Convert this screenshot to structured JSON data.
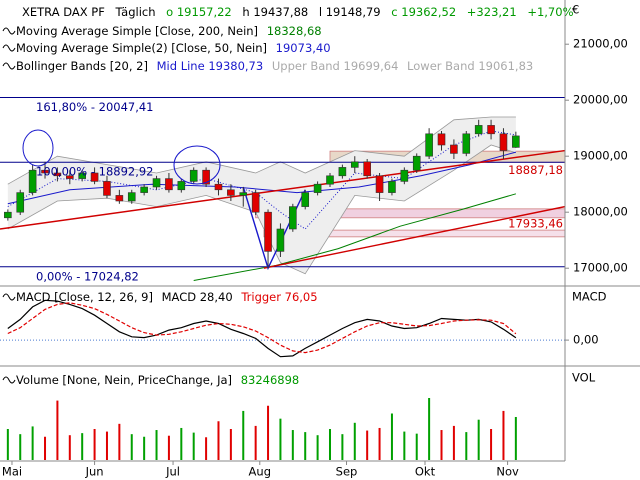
{
  "chart_data": [
    {
      "type": "candlestick",
      "title": "XETRA DAX PF",
      "subtitle": "Täglich",
      "quote": [
        "o 19157,22",
        "h 19437,88",
        "l 19148,79",
        "c 19362,52",
        "+323,21",
        "+1,70%"
      ],
      "currency": "€",
      "x": [
        0,
        3,
        6,
        9,
        12,
        15,
        18,
        21,
        24,
        27,
        30,
        33,
        36,
        39,
        42,
        45,
        48,
        51,
        54,
        57,
        60,
        63,
        66,
        69,
        72,
        75,
        78,
        81,
        84,
        87,
        90,
        93,
        96,
        99,
        102,
        105,
        108,
        111,
        114,
        117,
        120,
        123
      ],
      "open": [
        17900,
        18000,
        18350,
        18750,
        18700,
        18650,
        18600,
        18700,
        18550,
        18300,
        18200,
        18350,
        18450,
        18600,
        18400,
        18550,
        18750,
        18500,
        18400,
        18300,
        18350,
        18000,
        17300,
        17700,
        18100,
        18350,
        18500,
        18650,
        18800,
        18900,
        18650,
        18350,
        18550,
        18750,
        19000,
        19400,
        19200,
        19050,
        19400,
        19550,
        19400,
        19157.22
      ],
      "high": [
        18050,
        18400,
        18850,
        18900,
        18800,
        18750,
        18750,
        18800,
        18650,
        18400,
        18400,
        18500,
        18650,
        18700,
        18600,
        18800,
        18800,
        18600,
        18500,
        18450,
        18400,
        18050,
        17800,
        18150,
        18400,
        18550,
        18700,
        18850,
        19000,
        18950,
        18700,
        18600,
        18800,
        19050,
        19500,
        19450,
        19300,
        19450,
        19650,
        19650,
        19500,
        19437.88
      ],
      "low": [
        17850,
        17950,
        18300,
        18600,
        18550,
        18500,
        18550,
        18500,
        18250,
        18150,
        18150,
        18300,
        18400,
        18350,
        18350,
        18500,
        18450,
        18300,
        18200,
        18100,
        17950,
        17000,
        17200,
        17650,
        18050,
        18300,
        18450,
        18600,
        18700,
        18600,
        18200,
        18300,
        18500,
        18700,
        18950,
        19100,
        18950,
        19000,
        19350,
        19300,
        18950,
        19148.79
      ],
      "close": [
        18000,
        18350,
        18750,
        18700,
        18650,
        18600,
        18700,
        18550,
        18300,
        18200,
        18350,
        18450,
        18600,
        18400,
        18550,
        18750,
        18500,
        18400,
        18300,
        18350,
        18000,
        17300,
        17700,
        18100,
        18350,
        18500,
        18650,
        18800,
        18900,
        18650,
        18350,
        18550,
        18750,
        19000,
        19400,
        19200,
        19050,
        19400,
        19550,
        19400,
        19100,
        19362.52
      ],
      "up_color": "#00a000",
      "down_color": "#e00000",
      "xlim": [
        -1.9,
        134.9
      ],
      "ylim": [
        16700,
        21700
      ],
      "yticks": [
        {
          "value": 17000,
          "label": "17000,00"
        },
        {
          "value": 18000,
          "label": "18000,00"
        },
        {
          "value": 19000,
          "label": "19000,00"
        },
        {
          "value": 20000,
          "label": "20000,00"
        },
        {
          "value": 21000,
          "label": "21000,00"
        }
      ],
      "series": [
        {
          "name": "Moving Average Simple [Close, 200, Nein]",
          "color": "#008000",
          "x": [
            45,
            65,
            80,
            95,
            110,
            123
          ],
          "values": [
            16780,
            17050,
            17350,
            17750,
            18050,
            18328.68
          ],
          "value_label": "18328,68"
        },
        {
          "name": "Moving Average Simple(2) [Close, 50, Nein]",
          "color": "#1a1acc",
          "x": [
            0,
            15,
            35,
            55,
            70,
            85,
            100,
            112,
            123
          ],
          "values": [
            18150,
            18400,
            18500,
            18450,
            18350,
            18450,
            18650,
            18850,
            19073.4
          ],
          "value_label": "19073,40"
        }
      ],
      "bollinger": {
        "name": "Bollinger Bands [20, 2]",
        "x": [
          0,
          12,
          24,
          36,
          48,
          60,
          66,
          72,
          84,
          96,
          108,
          117,
          123
        ],
        "mid": [
          18100,
          18600,
          18550,
          18400,
          18600,
          18350,
          18000,
          17700,
          18700,
          18600,
          19200,
          19450,
          19380.73
        ],
        "upper": [
          18500,
          19000,
          18850,
          18700,
          18900,
          18700,
          18900,
          18700,
          19100,
          19000,
          19650,
          19700,
          19699.64
        ],
        "lower": [
          17700,
          18200,
          18250,
          18100,
          18300,
          18000,
          17100,
          16900,
          18300,
          18200,
          18750,
          19200,
          19061.83
        ],
        "mid_label": "Mid Line 19380,73",
        "upper_label": "Upper Band 19699,64",
        "lower_label": "Lower Band 19061,83",
        "mid_color": "#1a1acc",
        "band_color": "#999999"
      },
      "levels": [
        {
          "value": 20047.41,
          "label": "161,80% - 20047,41",
          "color": "#00008b"
        },
        {
          "value": 18892.92,
          "label": "100,00% - 18892,92",
          "color": "#00008b"
        },
        {
          "value": 17024.82,
          "label": "0,00% - 17024,82",
          "color": "#00008b"
        }
      ],
      "zones": [
        {
          "low": 18890,
          "high": 19090,
          "from": 78,
          "color": "#e8d8c8"
        },
        {
          "low": 17900,
          "high": 18060,
          "from": 60,
          "color": "#f0d0e0"
        },
        {
          "low": 17560,
          "high": 17680,
          "from": 62,
          "color": "#f5e0ea"
        }
      ],
      "trendlines": [
        {
          "color": "#d00000",
          "points": [
            [
              -1.9,
              17700
            ],
            [
              134.9,
              19100
            ]
          ]
        },
        {
          "color": "#d00000",
          "points": [
            [
              62,
              17000
            ],
            [
              134.9,
              18100
            ]
          ]
        },
        {
          "color": "#1a1acc",
          "points": [
            [
              57,
              18450
            ],
            [
              63,
              17000
            ],
            [
              72,
              18400
            ]
          ]
        }
      ],
      "price_marks": [
        {
          "value": 18887.18,
          "label": "18887,18",
          "color": "#d00000"
        },
        {
          "value": 17933.46,
          "label": "17933,46",
          "color": "#d00000"
        }
      ]
    },
    {
      "type": "line",
      "title": "MACD [Close, 12, 26, 9]",
      "axis_label": "MACD",
      "x": [
        0,
        3,
        6,
        9,
        12,
        15,
        18,
        21,
        24,
        27,
        30,
        33,
        36,
        39,
        42,
        45,
        48,
        51,
        54,
        57,
        60,
        63,
        66,
        69,
        72,
        75,
        78,
        81,
        84,
        87,
        90,
        93,
        96,
        99,
        102,
        105,
        108,
        111,
        114,
        117,
        120,
        123
      ],
      "xlim": [
        -1.9,
        134.9
      ],
      "ylim": [
        -300,
        640
      ],
      "yticks": [
        {
          "value": 0,
          "label": "0,00"
        }
      ],
      "series": [
        {
          "color": "#000000",
          "value_label": "MACD 28,40",
          "values": [
            140,
            250,
            400,
            480,
            470,
            430,
            380,
            300,
            200,
            100,
            40,
            30,
            60,
            120,
            150,
            200,
            230,
            200,
            130,
            80,
            20,
            -100,
            -200,
            -190,
            -100,
            -20,
            60,
            140,
            210,
            250,
            230,
            170,
            140,
            150,
            200,
            260,
            250,
            240,
            250,
            220,
            130,
            28.4
          ]
        },
        {
          "color": "#e00000",
          "value_label": "Trigger 76,05",
          "values": [
            80,
            150,
            260,
            370,
            430,
            450,
            420,
            380,
            310,
            230,
            150,
            90,
            60,
            70,
            100,
            140,
            180,
            200,
            190,
            160,
            110,
            30,
            -60,
            -130,
            -150,
            -120,
            -60,
            20,
            100,
            170,
            210,
            210,
            190,
            170,
            175,
            200,
            230,
            240,
            245,
            240,
            200,
            76.05
          ]
        }
      ]
    },
    {
      "type": "bar",
      "title": "Volume [None, Nein, PriceChange, Ja]",
      "axis_label": "VOL",
      "value_label": "83246898",
      "x": [
        0,
        3,
        6,
        9,
        12,
        15,
        18,
        21,
        24,
        27,
        30,
        33,
        36,
        39,
        42,
        45,
        48,
        51,
        54,
        57,
        60,
        63,
        66,
        69,
        72,
        75,
        78,
        81,
        84,
        87,
        90,
        93,
        96,
        99,
        102,
        105,
        108,
        111,
        114,
        117,
        120,
        123
      ],
      "xlim": [
        -1.9,
        134.9
      ],
      "ylim": [
        0,
        180000000
      ],
      "values": [
        60000000,
        50000000,
        65000000,
        45000000,
        115000000,
        48000000,
        52000000,
        60000000,
        55000000,
        70000000,
        50000000,
        45000000,
        58000000,
        47000000,
        62000000,
        53000000,
        44000000,
        75000000,
        60000000,
        95000000,
        66000000,
        105000000,
        80000000,
        58000000,
        54000000,
        48000000,
        60000000,
        50000000,
        72000000,
        57000000,
        62000000,
        90000000,
        55000000,
        51000000,
        120000000,
        58000000,
        66000000,
        54000000,
        78000000,
        60000000,
        95000000,
        83246898
      ],
      "xticks": [
        {
          "value": 1,
          "label": "Mai"
        },
        {
          "value": 21,
          "label": "Jun"
        },
        {
          "value": 40,
          "label": "Jul"
        },
        {
          "value": 61,
          "label": "Aug"
        },
        {
          "value": 82,
          "label": "Sep"
        },
        {
          "value": 101,
          "label": "Okt"
        },
        {
          "value": 121,
          "label": "Nov"
        }
      ]
    }
  ]
}
